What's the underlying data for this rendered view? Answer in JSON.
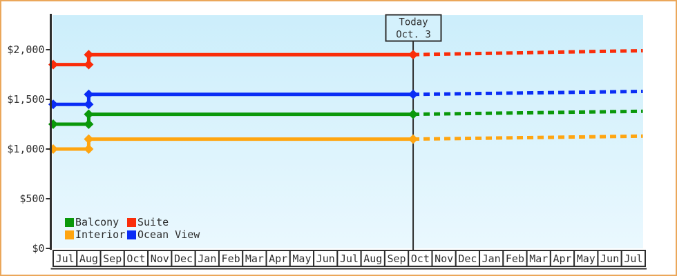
{
  "window": {
    "border_color": "#eba75a",
    "background": "#ffffff",
    "plot_background_top": "#cceefb",
    "plot_background_bottom": "#eaf8fe",
    "axis_color": "#2e2e2e"
  },
  "chart_data": {
    "type": "line",
    "title": "",
    "xlabel": "",
    "ylabel": "",
    "y_axis": {
      "min": 0,
      "max": 2000,
      "ticks": [
        {
          "label": "$0",
          "value": 0
        },
        {
          "label": "$500",
          "value": 500
        },
        {
          "label": "$1,000",
          "value": 1000
        },
        {
          "label": "$1,500",
          "value": 1500
        },
        {
          "label": "$2,000",
          "value": 2000
        }
      ]
    },
    "x_axis": {
      "months": [
        "Jul",
        "Aug",
        "Sep",
        "Oct",
        "Nov",
        "Dec",
        "Jan",
        "Feb",
        "Mar",
        "Apr",
        "May",
        "Jun",
        "Jul",
        "Aug",
        "Sep",
        "Oct",
        "Nov",
        "Dec",
        "Jan",
        "Feb",
        "Mar",
        "Apr",
        "May",
        "Jun",
        "Jul"
      ]
    },
    "today_marker": {
      "line1": "Today",
      "line2": "Oct. 3",
      "position_months": 15.2
    },
    "series": [
      {
        "name": "Suite",
        "color": "#fa2d0a",
        "history": [
          {
            "month": 0,
            "price": 1850
          },
          {
            "month": 1.5,
            "price": 1850
          },
          {
            "month": 1.5,
            "price": 1950
          },
          {
            "month": 15.2,
            "price": 1950
          }
        ],
        "projection_end": {
          "month": 24.9,
          "price": 1990
        }
      },
      {
        "name": "Ocean View",
        "color": "#0a2df5",
        "history": [
          {
            "month": 0,
            "price": 1450
          },
          {
            "month": 1.5,
            "price": 1450
          },
          {
            "month": 1.5,
            "price": 1550
          },
          {
            "month": 15.2,
            "price": 1550
          }
        ],
        "projection_end": {
          "month": 24.9,
          "price": 1580
        }
      },
      {
        "name": "Balcony",
        "color": "#0a980a",
        "history": [
          {
            "month": 0,
            "price": 1250
          },
          {
            "month": 1.5,
            "price": 1250
          },
          {
            "month": 1.5,
            "price": 1350
          },
          {
            "month": 15.2,
            "price": 1350
          }
        ],
        "projection_end": {
          "month": 24.9,
          "price": 1380
        }
      },
      {
        "name": "Interior",
        "color": "#ffa510",
        "history": [
          {
            "month": 0,
            "price": 1000
          },
          {
            "month": 1.5,
            "price": 1000
          },
          {
            "month": 1.5,
            "price": 1100
          },
          {
            "month": 15.2,
            "price": 1100
          }
        ],
        "projection_end": {
          "month": 24.9,
          "price": 1130
        }
      }
    ],
    "legend": {
      "position": "bottom-left-inside",
      "rows": [
        [
          "Balcony",
          "Suite"
        ],
        [
          "Interior",
          "Ocean View"
        ]
      ]
    }
  }
}
